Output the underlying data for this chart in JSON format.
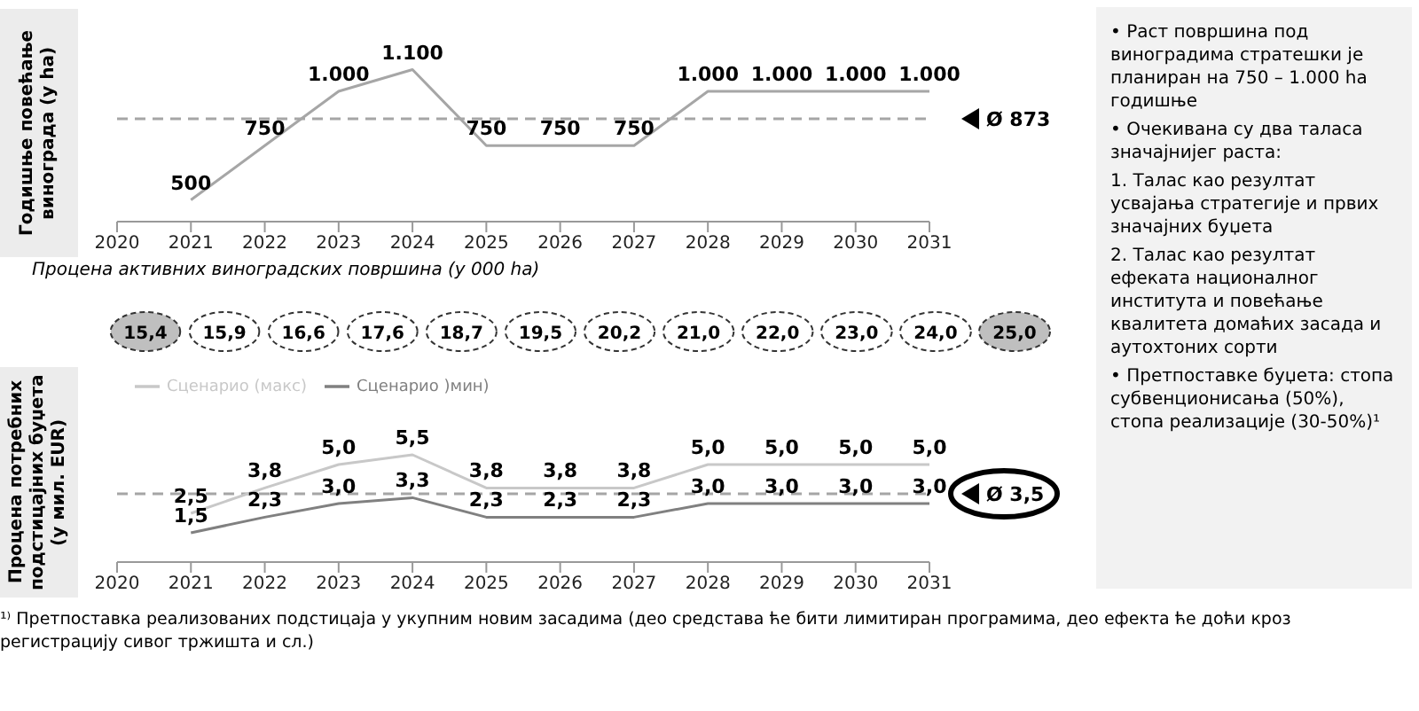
{
  "chart_data": [
    {
      "type": "line",
      "ylabel": "Годишње повећање винограда (у ha)",
      "x": [
        2021,
        2022,
        2023,
        2024,
        2025,
        2026,
        2027,
        2028,
        2029,
        2030,
        2031
      ],
      "xlim": [
        2020,
        2031
      ],
      "xticks": [
        2020,
        2021,
        2022,
        2023,
        2024,
        2025,
        2026,
        2027,
        2028,
        2029,
        2030,
        2031
      ],
      "tick_labels": "x",
      "marker": "none",
      "series": [
        {
          "color": "#a6a6a6",
          "values": [
            500,
            750,
            1000,
            1100,
            750,
            750,
            750,
            1000,
            1000,
            1000,
            1000
          ],
          "value_labels": [
            "500",
            "750",
            "1.000",
            "1.100",
            "750",
            "750",
            "750",
            "1.000",
            "1.000",
            "1.000",
            "1.000"
          ]
        }
      ],
      "ref_lines": [
        {
          "axis": "y",
          "value": 873,
          "label": "Ø 873",
          "color": "#a6a6a6",
          "line_style": "dashed"
        }
      ]
    },
    {
      "type": "other",
      "title": "Процена активних виноградских површина (у 000 ha)",
      "categories": [
        null,
        null,
        null,
        null,
        null,
        null,
        null,
        null,
        null,
        null,
        null,
        null
      ],
      "values": [
        15.4,
        15.9,
        16.6,
        17.6,
        18.7,
        19.5,
        20.2,
        21.0,
        22.0,
        23.0,
        24.0,
        25.0
      ],
      "value_labels": [
        "15,4",
        "15,9",
        "16,6",
        "17,6",
        "18,7",
        "19,5",
        "20,2",
        "21,0",
        "22,0",
        "23,0",
        "24,0",
        "25,0"
      ],
      "colors": [
        "#bfbfbf",
        "#ffffff",
        "#ffffff",
        "#ffffff",
        "#ffffff",
        "#ffffff",
        "#ffffff",
        "#ffffff",
        "#ffffff",
        "#ffffff",
        "#ffffff",
        "#bfbfbf"
      ]
    },
    {
      "type": "line",
      "ylabel": "Процена потребних подстицајних буџета (у мил. EUR)",
      "x": [
        2021,
        2022,
        2023,
        2024,
        2025,
        2026,
        2027,
        2028,
        2029,
        2030,
        2031
      ],
      "xlim": [
        2020,
        2031
      ],
      "xticks": [
        2020,
        2021,
        2022,
        2023,
        2024,
        2025,
        2026,
        2027,
        2028,
        2029,
        2030,
        2031
      ],
      "tick_labels": "x",
      "marker": "none",
      "legend": "top left",
      "series": [
        {
          "name": "Сценарио )мин)",
          "color": "#808080",
          "values": [
            1.5,
            2.3,
            3.0,
            3.3,
            2.3,
            2.3,
            2.3,
            3.0,
            3.0,
            3.0,
            3.0
          ],
          "value_labels": [
            "1,5",
            "2,3",
            "3,0",
            "3,3",
            "2,3",
            "2,3",
            "2,3",
            "3,0",
            "3,0",
            "3,0",
            "3,0"
          ]
        },
        {
          "name": "Сценарио (макс)",
          "color": "#c8c8c8",
          "values": [
            2.5,
            3.8,
            5.0,
            5.5,
            3.8,
            3.8,
            3.8,
            5.0,
            5.0,
            5.0,
            5.0
          ],
          "value_labels": [
            "2,5",
            "3,8",
            "5,0",
            "5,5",
            "3,8",
            "3,8",
            "3,8",
            "5,0",
            "5,0",
            "5,0",
            "5,0"
          ]
        }
      ],
      "ref_lines": [
        {
          "axis": "y",
          "value": 3.5,
          "label": "Ø 3,5",
          "color": "#a6a6a6",
          "line_style": "dashed"
        }
      ],
      "annotations": [
        "¹⁾ Претпоставка реализованих подстицаја у укупним новим засадима (део средстава ће бити лимитиран програмима, део ефекта ће доћи кроз регистрацију сивог тржишта и сл.)"
      ]
    },
    {
      "type": "other",
      "annotations": [
        "• Раст површина под виноградима стратешки је планиран на 750 – 1.000 ha годишње",
        "• Очекивана су два таласа значајнијег раста:",
        "1. Талас као резултат усвајања стратегије и првих значајних буџета",
        "2. Талас као резултат ефеката националног института и повећање квалитета домаћих засада и аутохтоних сорти",
        "• Претпоставке буџета: стопа субвенционисања (50%), стопа реализације (30-50%)¹"
      ]
    }
  ]
}
